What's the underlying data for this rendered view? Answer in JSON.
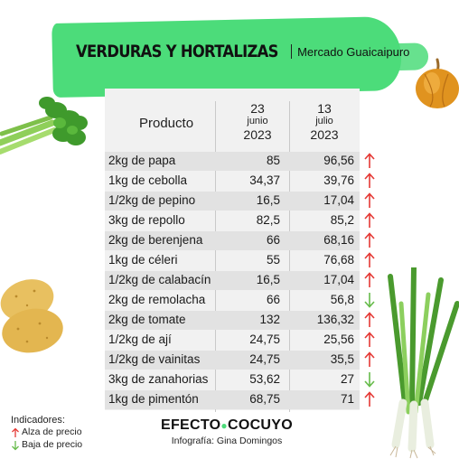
{
  "header": {
    "title": "VERDURAS Y HORTALIZAS",
    "subtitle": "Mercado Guaicaipuro"
  },
  "table": {
    "col_product": "Producto",
    "col1": {
      "day": "23",
      "month": "junio",
      "year": "2023"
    },
    "col2": {
      "day": "13",
      "month": "julio",
      "year": "2023"
    },
    "rows": [
      {
        "product": "2kg de papa",
        "v1": "85",
        "v2": "96,56",
        "trend": "up"
      },
      {
        "product": "1kg de cebolla",
        "v1": "34,37",
        "v2": "39,76",
        "trend": "up"
      },
      {
        "product": "1/2kg de pepino",
        "v1": "16,5",
        "v2": "17,04",
        "trend": "up"
      },
      {
        "product": "3kg de repollo",
        "v1": "82,5",
        "v2": "85,2",
        "trend": "up"
      },
      {
        "product": "2kg de berenjena",
        "v1": "66",
        "v2": "68,16",
        "trend": "up"
      },
      {
        "product": "1kg de céleri",
        "v1": "55",
        "v2": "76,68",
        "trend": "up"
      },
      {
        "product": "1/2kg de calabacín",
        "v1": "16,5",
        "v2": "17,04",
        "trend": "up"
      },
      {
        "product": "2kg de remolacha",
        "v1": "66",
        "v2": "56,8",
        "trend": "down"
      },
      {
        "product": "2kg de tomate",
        "v1": "132",
        "v2": "136,32",
        "trend": "up"
      },
      {
        "product": "1/2kg de ají",
        "v1": "24,75",
        "v2": "25,56",
        "trend": "up"
      },
      {
        "product": "1/2kg de vainitas",
        "v1": "24,75",
        "v2": "35,5",
        "trend": "up"
      },
      {
        "product": "3kg de zanahorias",
        "v1": "53,62",
        "v2": "27",
        "trend": "down"
      },
      {
        "product": "1kg de pimentón",
        "v1": "68,75",
        "v2": "71",
        "trend": "up"
      }
    ]
  },
  "legend": {
    "title": "Indicadores:",
    "up_label": "Alza de precio",
    "down_label": "Baja de precio"
  },
  "footer": {
    "brand_left": "EFECTO",
    "brand_right": "COCUYO",
    "credit": "Infografía: Gina Domingos"
  },
  "colors": {
    "accent_green": "#4cdc7a",
    "up_arrow": "#e53935",
    "down_arrow": "#66bb4a"
  },
  "icons": {
    "up": "arrow-up-icon",
    "down": "arrow-down-icon"
  }
}
